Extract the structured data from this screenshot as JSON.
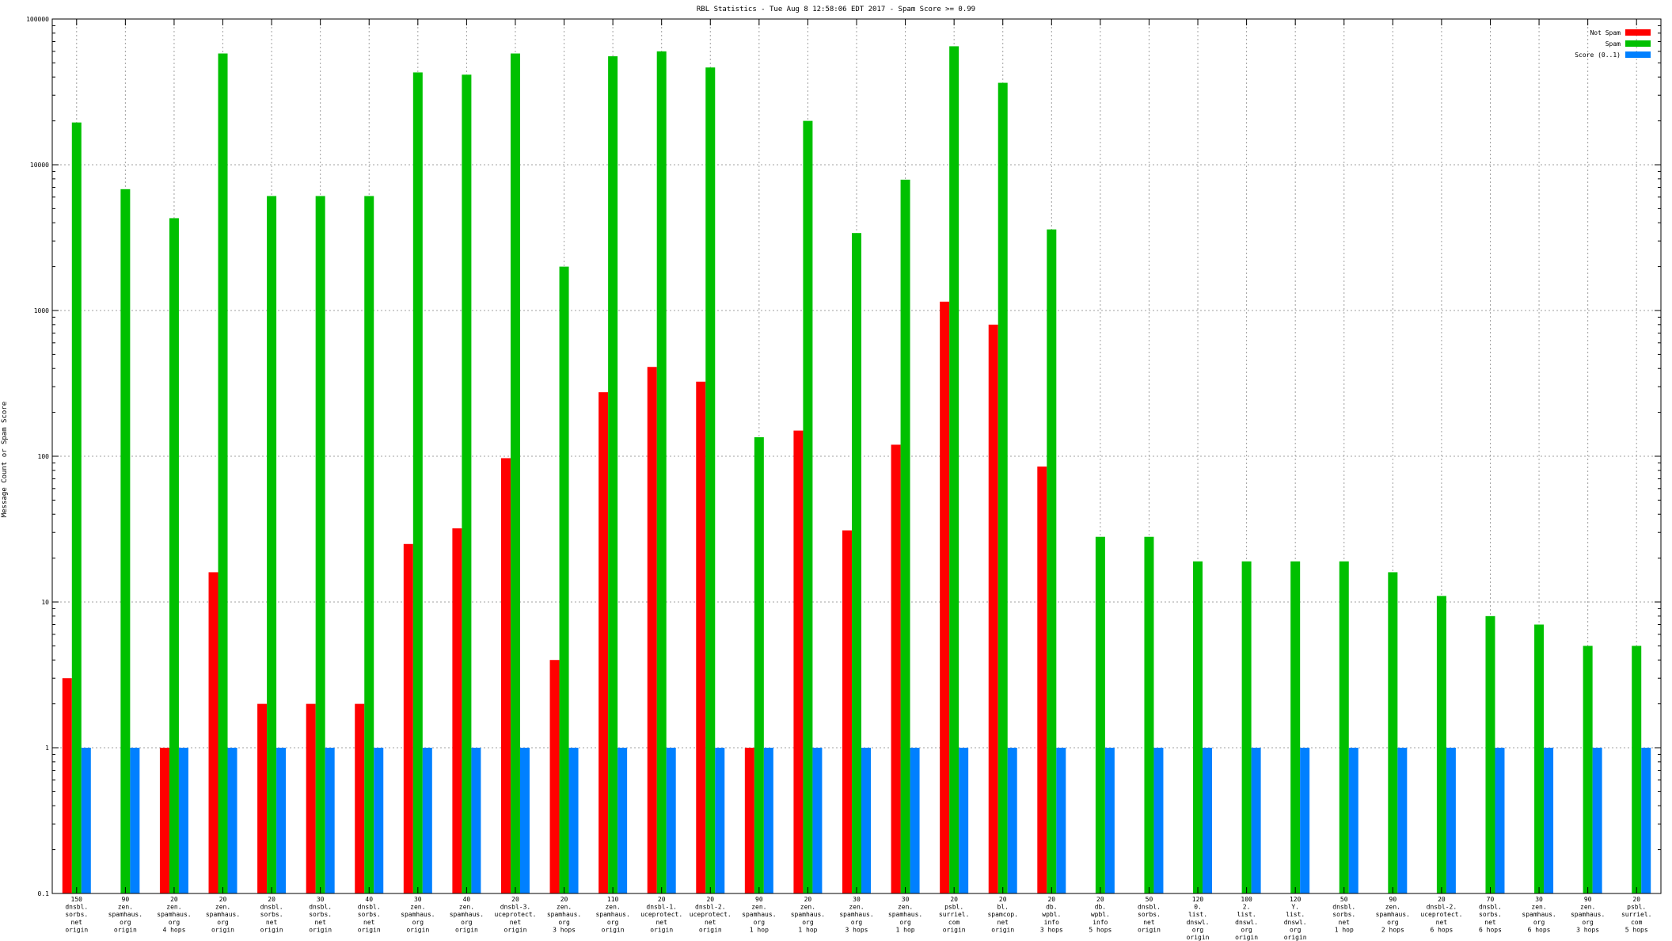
{
  "chart_data": {
    "type": "bar",
    "title": "RBL Statistics - Tue Aug  8 12:58:06 EDT 2017 - Spam Score >= 0.99",
    "xlabel": "",
    "ylabel": "Message Count or Spam Score",
    "yscale": "log",
    "ylim": [
      0.1,
      100000
    ],
    "yticks": [
      {
        "value": 0.1,
        "label": "0.1"
      },
      {
        "value": 1,
        "label": "1"
      },
      {
        "value": 10,
        "label": "10"
      },
      {
        "value": 100,
        "label": "100"
      },
      {
        "value": 1000,
        "label": "1000"
      },
      {
        "value": 10000,
        "label": "10000"
      },
      {
        "value": 100000,
        "label": "100000"
      }
    ],
    "grid": true,
    "legend_position": "top-right",
    "categories": [
      [
        "150",
        "dnsbl.",
        "sorbs.",
        "net",
        "origin"
      ],
      [
        "90",
        "zen.",
        "spamhaus.",
        "org",
        "origin"
      ],
      [
        "20",
        "zen.",
        "spamhaus.",
        "org",
        "4 hops"
      ],
      [
        "20",
        "zen.",
        "spamhaus.",
        "org",
        "origin"
      ],
      [
        "20",
        "dnsbl.",
        "sorbs.",
        "net",
        "origin"
      ],
      [
        "30",
        "dnsbl.",
        "sorbs.",
        "net",
        "origin"
      ],
      [
        "40",
        "dnsbl.",
        "sorbs.",
        "net",
        "origin"
      ],
      [
        "30",
        "zen.",
        "spamhaus.",
        "org",
        "origin"
      ],
      [
        "40",
        "zen.",
        "spamhaus.",
        "org",
        "origin"
      ],
      [
        "20",
        "dnsbl-3.",
        "uceprotect.",
        "net",
        "origin"
      ],
      [
        "20",
        "zen.",
        "spamhaus.",
        "org",
        "3 hops"
      ],
      [
        "110",
        "zen.",
        "spamhaus.",
        "org",
        "origin"
      ],
      [
        "20",
        "dnsbl-1.",
        "uceprotect.",
        "net",
        "origin"
      ],
      [
        "20",
        "dnsbl-2.",
        "uceprotect.",
        "net",
        "origin"
      ],
      [
        "90",
        "zen.",
        "spamhaus.",
        "org",
        "1 hop"
      ],
      [
        "20",
        "zen.",
        "spamhaus.",
        "org",
        "1 hop"
      ],
      [
        "30",
        "zen.",
        "spamhaus.",
        "org",
        "3 hops"
      ],
      [
        "30",
        "zen.",
        "spamhaus.",
        "org",
        "1 hop"
      ],
      [
        "20",
        "psbl.",
        "surriel.",
        "com",
        "origin"
      ],
      [
        "20",
        "bl.",
        "spamcop.",
        "net",
        "origin"
      ],
      [
        "20",
        "db.",
        "wpbl.",
        "info",
        "3 hops"
      ],
      [
        "20",
        "db.",
        "wpbl.",
        "info",
        "5 hops"
      ],
      [
        "50",
        "dnsbl.",
        "sorbs.",
        "net",
        "origin"
      ],
      [
        "120",
        "0.",
        "list.",
        "dnswl.",
        "org",
        "origin"
      ],
      [
        "100",
        "2.",
        "list.",
        "dnswl.",
        "org",
        "origin"
      ],
      [
        "120",
        "Y.",
        "list.",
        "dnswl.",
        "org",
        "origin"
      ],
      [
        "50",
        "dnsbl.",
        "sorbs.",
        "net",
        "1 hop"
      ],
      [
        "90",
        "zen.",
        "spamhaus.",
        "org",
        "2 hops"
      ],
      [
        "20",
        "dnsbl-2.",
        "uceprotect.",
        "net",
        "6 hops"
      ],
      [
        "70",
        "dnsbl.",
        "sorbs.",
        "net",
        "6 hops"
      ],
      [
        "30",
        "zen.",
        "spamhaus.",
        "org",
        "6 hops"
      ],
      [
        "90",
        "zen.",
        "spamhaus.",
        "org",
        "3 hops"
      ],
      [
        "20",
        "psbl.",
        "surriel.",
        "com",
        "5 hops"
      ]
    ],
    "series": [
      {
        "name": "Not Spam",
        "color": "#ff0000",
        "values": [
          3,
          null,
          1,
          16,
          2,
          2,
          2,
          25,
          32,
          97,
          4,
          275,
          410,
          325,
          1,
          150,
          31,
          120,
          1150,
          800,
          85,
          null,
          null,
          null,
          null,
          null,
          null,
          null,
          null,
          null,
          null,
          null,
          null
        ]
      },
      {
        "name": "Spam",
        "color": "#00c000",
        "values": [
          19500,
          6800,
          4300,
          58000,
          6100,
          6100,
          6100,
          43000,
          41500,
          58000,
          2000,
          55500,
          60000,
          46500,
          135,
          20000,
          3400,
          7900,
          65000,
          36500,
          3600,
          28,
          28,
          19,
          19,
          19,
          19,
          16,
          11,
          8,
          7,
          5,
          5
        ]
      },
      {
        "name": "Score (0..1)",
        "color": "#0080ff",
        "values": [
          1,
          1,
          1,
          1,
          1,
          1,
          1,
          1,
          1,
          1,
          1,
          1,
          1,
          1,
          1,
          1,
          1,
          1,
          1,
          1,
          1,
          1,
          1,
          1,
          1,
          1,
          1,
          1,
          1,
          1,
          1,
          1,
          1
        ]
      }
    ]
  }
}
